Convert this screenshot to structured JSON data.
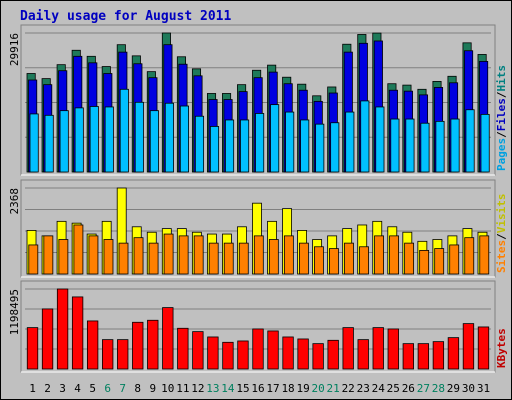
{
  "chart_data": {
    "type": "bar",
    "title": "Daily usage for August 2011",
    "days": [
      "1",
      "2",
      "3",
      "4",
      "5",
      "6",
      "7",
      "8",
      "9",
      "10",
      "11",
      "12",
      "13",
      "14",
      "15",
      "16",
      "17",
      "18",
      "19",
      "20",
      "21",
      "22",
      "23",
      "24",
      "25",
      "26",
      "27",
      "28",
      "29",
      "30",
      "31"
    ],
    "weekend_days": [
      "6",
      "7",
      "13",
      "14",
      "20",
      "21",
      "27",
      "28"
    ],
    "panels": [
      {
        "id": "hits",
        "ymax_label": "29916",
        "ymax": 29916,
        "side_labels": [
          {
            "text": "Hits",
            "color": "#008080"
          },
          {
            "text": "/",
            "color": "#000000"
          },
          {
            "text": "Files",
            "color": "#0000c0"
          },
          {
            "text": "/",
            "color": "#000000"
          },
          {
            "text": "Pages",
            "color": "#00a0e0"
          }
        ],
        "series": [
          {
            "name": "Hits",
            "color": "#1e7a5a",
            "values": [
              21200,
              20100,
              23100,
              26200,
              24900,
              22700,
              27400,
              25000,
              21600,
              30000,
              24800,
              22200,
              16900,
              16900,
              18800,
              21900,
              23000,
              20400,
              18900,
              16400,
              18300,
              27500,
              29600,
              29900,
              19000,
              18700,
              17800,
              19500,
              20600,
              27800,
              25300
            ]
          },
          {
            "name": "Files",
            "color": "#0000e0",
            "values": [
              19800,
              18800,
              21800,
              24900,
              23500,
              21200,
              25800,
              23300,
              20300,
              27400,
              23200,
              20700,
              15600,
              15600,
              17300,
              20300,
              21500,
              19000,
              17600,
              15200,
              17000,
              25800,
              27700,
              28200,
              17600,
              17400,
              16600,
              18200,
              19200,
              26100,
              23800
            ]
          },
          {
            "name": "Pages",
            "color": "#00c0ff",
            "values": [
              12500,
              12200,
              13200,
              13800,
              14100,
              14000,
              17800,
              15000,
              13200,
              14800,
              14200,
              12000,
              9800,
              11200,
              11200,
              12600,
              14500,
              12900,
              11200,
              10300,
              10600,
              12900,
              15300,
              14000,
              11400,
              11400,
              10500,
              10900,
              11400,
              13400,
              12400
            ]
          }
        ]
      },
      {
        "id": "visits",
        "ymax_label": "2368",
        "ymax": 2368,
        "side_labels": [
          {
            "text": "Visits",
            "color": "#c0c000"
          },
          {
            "text": "/",
            "color": "#000000"
          },
          {
            "text": "Sites",
            "color": "#ff8000"
          }
        ],
        "series": [
          {
            "name": "Visits",
            "color": "#ffff00",
            "values": [
              1200,
              1050,
              1450,
              1400,
              1100,
              1450,
              2368,
              1300,
              1150,
              1250,
              1250,
              1150,
              1100,
              1100,
              1300,
              1950,
              1450,
              1800,
              1200,
              950,
              1050,
              1250,
              1350,
              1450,
              1300,
              1150,
              900,
              950,
              1050,
              1250,
              1150
            ]
          },
          {
            "name": "Sites",
            "color": "#ff8000",
            "values": [
              800,
              1050,
              950,
              1350,
              1050,
              950,
              850,
              1000,
              850,
              1100,
              1050,
              1050,
              850,
              850,
              850,
              1050,
              950,
              1050,
              850,
              750,
              700,
              850,
              750,
              1050,
              1050,
              850,
              650,
              700,
              800,
              1000,
              1050
            ]
          }
        ]
      },
      {
        "id": "kbytes",
        "ymax_label": "1198495",
        "ymax": 1198495,
        "side_labels": [
          {
            "text": "KBytes",
            "color": "#c00000"
          }
        ],
        "series": [
          {
            "name": "KBytes",
            "color": "#ff0000",
            "values": [
              620000,
              900000,
              1198495,
              1080000,
              720000,
              440000,
              440000,
              700000,
              730000,
              920000,
              610000,
              560000,
              480000,
              400000,
              420000,
              600000,
              570000,
              480000,
              450000,
              380000,
              430000,
              620000,
              440000,
              620000,
              600000,
              380000,
              380000,
              410000,
              470000,
              680000,
              630000
            ]
          }
        ]
      }
    ]
  }
}
